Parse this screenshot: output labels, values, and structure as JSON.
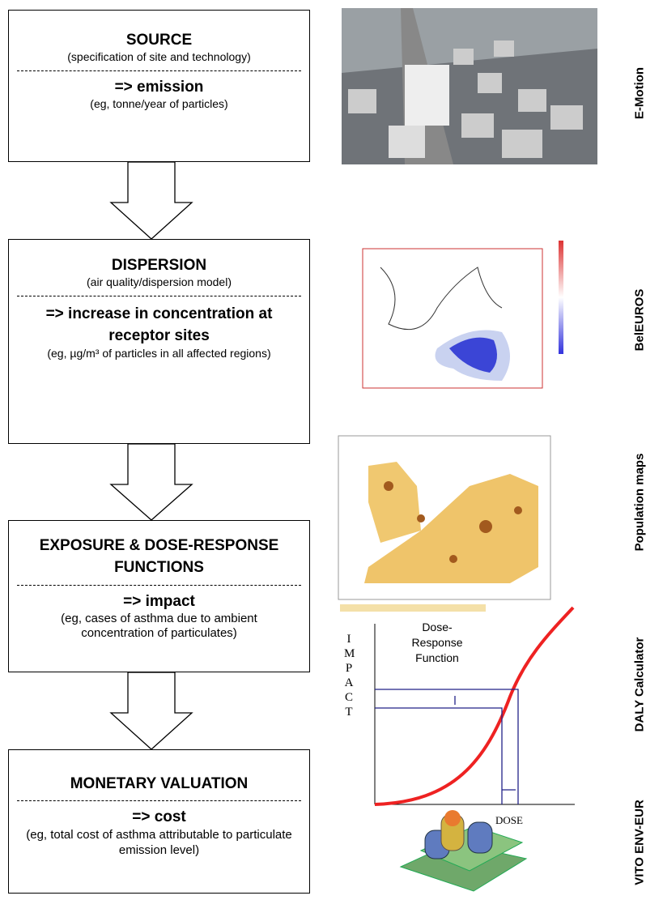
{
  "boxes": [
    {
      "title": "SOURCE",
      "subtitle": "(specification of site and technology)",
      "result": "=> emission",
      "example": "(eg, tonne/year of particles)"
    },
    {
      "title": "DISPERSION",
      "subtitle": "(air quality/dispersion model)",
      "result": "=> increase in concentration at receptor sites",
      "example": "(eg, µg/m³ of particles in all affected regions)"
    },
    {
      "title": "EXPOSURE & DOSE-RESPONSE FUNCTIONS",
      "result": "=> impact",
      "example": "(eg, cases of asthma due to ambient concentration of particulates)"
    },
    {
      "title": "MONETARY VALUATION",
      "result": "=> cost",
      "example": "(eg, total cost of asthma attributable to particulate emission level)"
    }
  ],
  "tools": [
    "E-Motion",
    "BelEUROS",
    "Population maps",
    "DALY Calculator",
    "VITO ENV-EUR"
  ],
  "dose_chart": {
    "title": "Dose-Response Function",
    "y_label": "IMPACT",
    "x_label": "DOSE"
  }
}
